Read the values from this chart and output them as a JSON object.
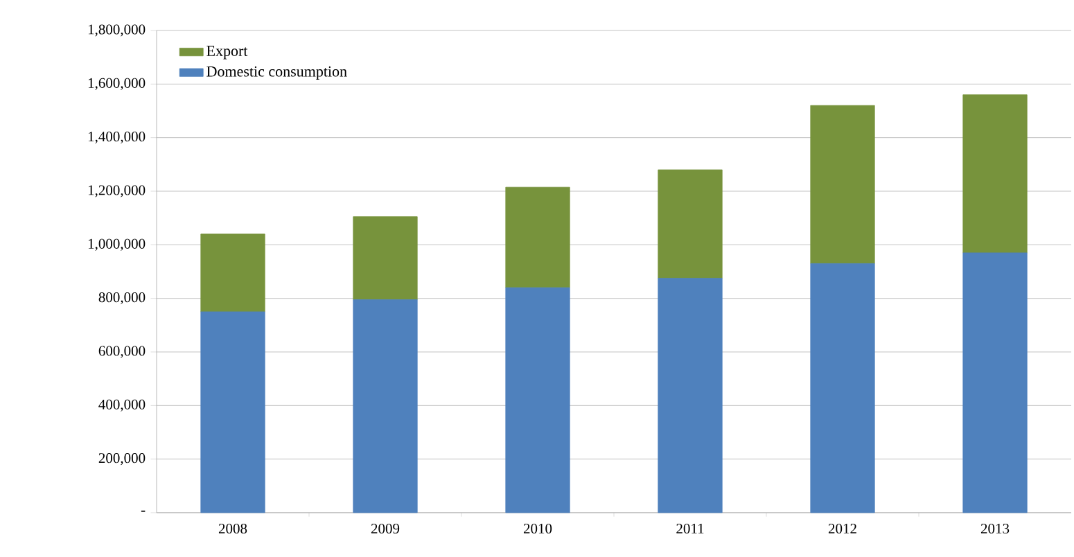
{
  "chart_data": {
    "type": "bar",
    "stacked": true,
    "categories": [
      "2008",
      "2009",
      "2010",
      "2011",
      "2012",
      "2013"
    ],
    "series": [
      {
        "name": "Domestic consumption",
        "color": "#4f81bd",
        "values": [
          750000,
          795000,
          840000,
          875000,
          930000,
          970000
        ]
      },
      {
        "name": "Export",
        "color": "#77933c",
        "values": [
          290000,
          310000,
          375000,
          405000,
          590000,
          590000
        ]
      }
    ],
    "ylim": [
      0,
      1800000
    ],
    "yticks": [
      {
        "value": 0,
        "label": "-"
      },
      {
        "value": 200000,
        "label": "200,000"
      },
      {
        "value": 400000,
        "label": "400,000"
      },
      {
        "value": 600000,
        "label": "600,000"
      },
      {
        "value": 800000,
        "label": "800,000"
      },
      {
        "value": 1000000,
        "label": "1,000,000"
      },
      {
        "value": 1200000,
        "label": "1,200,000"
      },
      {
        "value": 1400000,
        "label": "1,400,000"
      },
      {
        "value": 1600000,
        "label": "1,600,000"
      },
      {
        "value": 1800000,
        "label": "1,800,000"
      }
    ],
    "grid": "y",
    "legend": "top left"
  }
}
